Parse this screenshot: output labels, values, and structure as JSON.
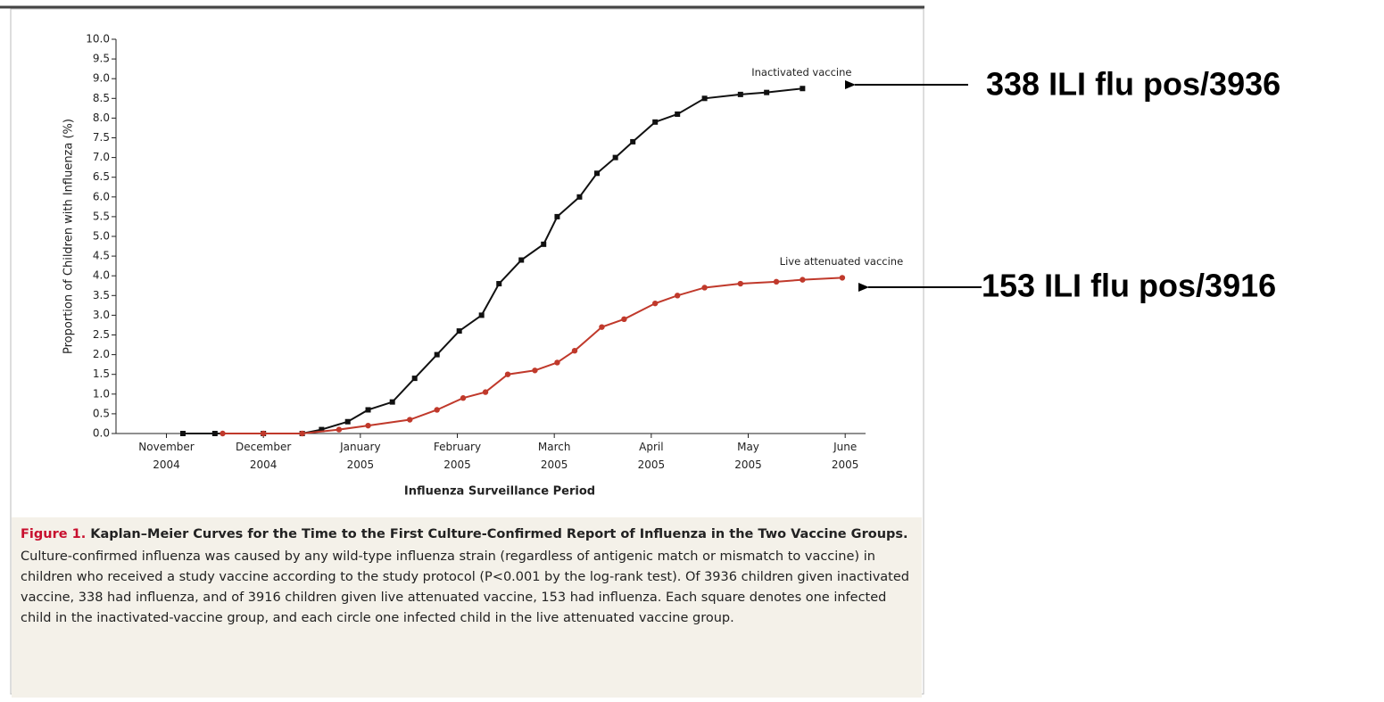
{
  "chart_data": {
    "type": "line",
    "ylabel": "Proportion of Children with Influenza (%)",
    "xlabel": "Influenza Surveillance Period",
    "xlim": [
      -0.52,
      7.21
    ],
    "xticks": [
      {
        "value": 0,
        "label": "November 2004"
      },
      {
        "value": 1,
        "label": "December 2004"
      },
      {
        "value": 2,
        "label": "January 2005"
      },
      {
        "value": 3,
        "label": "February 2005"
      },
      {
        "value": 4,
        "label": "March 2005"
      },
      {
        "value": 5,
        "label": "April 2005"
      },
      {
        "value": 6,
        "label": "May 2005"
      },
      {
        "value": 7,
        "label": "June 2005"
      }
    ],
    "ylim": [
      0,
      10
    ],
    "yticks": [
      {
        "value": 0,
        "label": "0.0"
      },
      {
        "value": 0.5,
        "label": "0.5"
      },
      {
        "value": 1,
        "label": "1.0"
      },
      {
        "value": 1.5,
        "label": "1.5"
      },
      {
        "value": 2,
        "label": "2.0"
      },
      {
        "value": 2.5,
        "label": "2.5"
      },
      {
        "value": 3,
        "label": "3.0"
      },
      {
        "value": 3.5,
        "label": "3.5"
      },
      {
        "value": 4,
        "label": "4.0"
      },
      {
        "value": 4.5,
        "label": "4.5"
      },
      {
        "value": 5,
        "label": "5.0"
      },
      {
        "value": 5.5,
        "label": "5.5"
      },
      {
        "value": 6,
        "label": "6.0"
      },
      {
        "value": 6.5,
        "label": "6.5"
      },
      {
        "value": 7,
        "label": "7.0"
      },
      {
        "value": 7.5,
        "label": "7.5"
      },
      {
        "value": 8,
        "label": "8.0"
      },
      {
        "value": 8.5,
        "label": "8.5"
      },
      {
        "value": 9,
        "label": "9.0"
      },
      {
        "value": 9.5,
        "label": "9.5"
      },
      {
        "value": 10,
        "label": "10.0"
      }
    ],
    "series": [
      {
        "name": "Inactivated vaccine",
        "color": "#111111",
        "marker": "square",
        "x": [
          0.17,
          0.5,
          1.0,
          1.4,
          1.6,
          1.87,
          2.08,
          2.33,
          2.56,
          2.79,
          3.02,
          3.25,
          3.43,
          3.66,
          3.89,
          4.03,
          4.26,
          4.44,
          4.63,
          4.81,
          5.04,
          5.27,
          5.55,
          5.92,
          6.19,
          6.56
        ],
        "values": [
          0,
          0,
          0,
          0,
          0.1,
          0.3,
          0.6,
          0.8,
          1.4,
          2.0,
          2.6,
          3.0,
          3.8,
          4.4,
          4.8,
          5.5,
          6.0,
          6.6,
          7.0,
          7.4,
          7.9,
          8.1,
          8.5,
          8.6,
          8.65,
          8.75
        ]
      },
      {
        "name": "Live attenuated vaccine",
        "color": "#c0392b",
        "marker": "circle",
        "x": [
          0.58,
          1.0,
          1.4,
          1.78,
          2.08,
          2.51,
          2.79,
          3.06,
          3.29,
          3.52,
          3.8,
          4.03,
          4.21,
          4.49,
          4.72,
          5.04,
          5.27,
          5.55,
          5.92,
          6.29,
          6.56,
          6.97
        ],
        "values": [
          0,
          0,
          0,
          0.1,
          0.2,
          0.35,
          0.6,
          0.9,
          1.05,
          1.5,
          1.6,
          1.8,
          2.1,
          2.7,
          2.9,
          3.3,
          3.5,
          3.7,
          3.8,
          3.85,
          3.9,
          3.95
        ]
      }
    ],
    "annotations": [
      "338 ILI flu pos/3936",
      "153 ILI flu pos/3916"
    ]
  },
  "caption": {
    "label": "Figure 1.",
    "title": "Kaplan–Meier Curves for the Time to the First Culture-Confirmed Report of Influenza in the Two Vaccine Groups.",
    "body": "Culture-confirmed influenza was caused by any wild-type influenza strain (regardless of antigenic match or mismatch to vaccine) in children who received a study vaccine according to the study protocol (P<0.001 by the log-rank test). Of 3936 children given inactivated vaccine, 338 had influenza, and of 3916 children given live attenuated vaccine, 153 had influenza. Each square denotes one infected child in the inactivated-vaccine group, and each circle one infected child in the live attenuated vaccine group."
  }
}
